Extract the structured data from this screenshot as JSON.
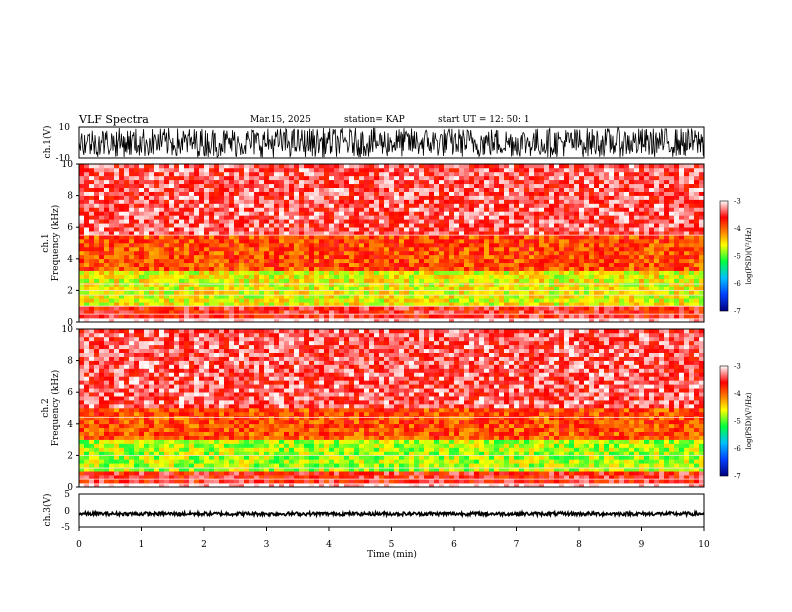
{
  "header": {
    "title": "VLF Spectra",
    "date": "Mar.15, 2025",
    "station": "station= KAP",
    "start": "start  UT  =    12: 50: 1"
  },
  "chart_data": [
    {
      "type": "line",
      "panel": "waveform-ch1",
      "ylabel": "ch.1(V)",
      "ylim": [
        -10,
        10
      ],
      "yticks": [
        "10",
        "-10"
      ],
      "xlim": [
        0,
        10
      ],
      "signal": "saturated noise spanning roughly -10 to 10 V"
    },
    {
      "type": "heatmap",
      "panel": "spectrogram-ch1",
      "ylabel": "ch.1\nFrequency  (kHz)",
      "ylim": [
        0,
        10
      ],
      "yticks": [
        "0",
        "2",
        "4",
        "6",
        "8",
        "10"
      ],
      "xlim": [
        0,
        10
      ],
      "colorbar": {
        "label": "log(PSD)(V²/Hz)",
        "ticks": [
          "-3",
          "-4",
          "-5",
          "-6",
          "-7"
        ],
        "range": [
          -7,
          -3
        ]
      },
      "band_levels": [
        {
          "freq_khz": [
            0.0,
            0.3
          ],
          "level": -3.0
        },
        {
          "freq_khz": [
            0.3,
            1.0
          ],
          "level": -3.6
        },
        {
          "freq_khz": [
            1.0,
            3.2
          ],
          "level": -4.6
        },
        {
          "freq_khz": [
            3.2,
            5.5
          ],
          "level": -3.9
        },
        {
          "freq_khz": [
            5.5,
            10.0
          ],
          "level": -3.4
        }
      ],
      "lines_khz": [
        0.2,
        0.5,
        1.0,
        1.7,
        2.0,
        2.4,
        5.5
      ]
    },
    {
      "type": "heatmap",
      "panel": "spectrogram-ch2",
      "ylabel": "ch.2\nFrequency  (kHz)",
      "ylim": [
        0,
        10
      ],
      "yticks": [
        "0",
        "2",
        "4",
        "6",
        "8",
        "10"
      ],
      "xlim": [
        0,
        10
      ],
      "colorbar": {
        "label": "log(PSD)(V²/Hz)",
        "ticks": [
          "-3",
          "-4",
          "-5",
          "-6",
          "-7"
        ],
        "range": [
          -7,
          -3
        ]
      },
      "band_levels": [
        {
          "freq_khz": [
            0.0,
            0.3
          ],
          "level": -3.0
        },
        {
          "freq_khz": [
            0.3,
            1.0
          ],
          "level": -3.6
        },
        {
          "freq_khz": [
            1.0,
            3.0
          ],
          "level": -4.8
        },
        {
          "freq_khz": [
            3.0,
            5.0
          ],
          "level": -3.9
        },
        {
          "freq_khz": [
            5.0,
            10.0
          ],
          "level": -3.4
        }
      ],
      "lines_khz": [
        0.2,
        0.5,
        1.2,
        2.0,
        4.4
      ]
    },
    {
      "type": "line",
      "panel": "waveform-ch3",
      "ylabel": "ch.3(V)",
      "ylim": [
        -5,
        5
      ],
      "yticks": [
        "5",
        "0",
        "-5"
      ],
      "xlabel": "Time  (min)",
      "xlim": [
        0,
        10
      ],
      "xticks": [
        "0",
        "1",
        "2",
        "3",
        "4",
        "5",
        "6",
        "7",
        "8",
        "9",
        "10"
      ],
      "signal": "narrow band around -1 V"
    }
  ],
  "colors": {
    "background": "#ffffff",
    "axes": "#000000",
    "colormap": [
      "#000080",
      "#0040ff",
      "#00c0ff",
      "#00ff40",
      "#ffff00",
      "#ff8000",
      "#ff0000",
      "#ffffff"
    ]
  }
}
